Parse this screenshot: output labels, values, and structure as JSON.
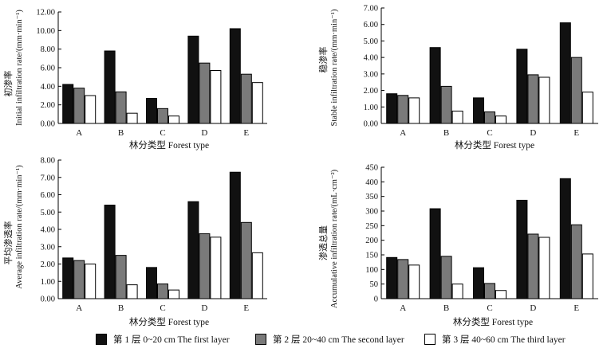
{
  "categories": [
    "A",
    "B",
    "C",
    "D",
    "E"
  ],
  "legend": [
    {
      "label": "第 1 层 0~20 cm The first layer",
      "color": "#111111"
    },
    {
      "label": "第 2 层 20~40 cm The second layer",
      "color": "#7a7a7a"
    },
    {
      "label": "第 3 层 40~60 cm The  third layer",
      "color": "#ffffff"
    }
  ],
  "chart_data": [
    {
      "type": "bar",
      "xlabel": "林分类型 Forest type",
      "ylabel_cn": "初渗率",
      "ylabel_en": "Initial infiltration rate/(mm·min⁻¹)",
      "ylim": [
        0,
        12
      ],
      "yticks": [
        "0.00",
        "2.00",
        "4.00",
        "6.00",
        "8.00",
        "10.00",
        "12.00"
      ],
      "categories": [
        "A",
        "B",
        "C",
        "D",
        "E"
      ],
      "series": [
        {
          "name": "第 1 层 0~20 cm The first layer",
          "values": [
            4.2,
            7.8,
            2.7,
            9.4,
            10.2
          ]
        },
        {
          "name": "第 2 层 20~40 cm The second layer",
          "values": [
            3.8,
            3.4,
            1.6,
            6.5,
            5.3
          ]
        },
        {
          "name": "第 3 层 40~60 cm The third layer",
          "values": [
            3.0,
            1.1,
            0.8,
            5.7,
            4.4
          ]
        }
      ]
    },
    {
      "type": "bar",
      "xlabel": "林分类型 Forest type",
      "ylabel_cn": "稳渗率",
      "ylabel_en": "Stable infiltration rate/(mm·min⁻¹)",
      "ylim": [
        0,
        7
      ],
      "yticks": [
        "0.00",
        "1.00",
        "2.00",
        "3.00",
        "4.00",
        "5.00",
        "6.00",
        "7.00"
      ],
      "categories": [
        "A",
        "B",
        "C",
        "D",
        "E"
      ],
      "series": [
        {
          "name": "第 1 层 0~20 cm The first layer",
          "values": [
            1.8,
            4.6,
            1.55,
            4.5,
            6.1
          ]
        },
        {
          "name": "第 2 层 20~40 cm The second layer",
          "values": [
            1.7,
            2.25,
            0.7,
            2.95,
            4.0
          ]
        },
        {
          "name": "第 3 层 40~60 cm The third layer",
          "values": [
            1.55,
            0.75,
            0.45,
            2.8,
            1.9
          ]
        }
      ]
    },
    {
      "type": "bar",
      "xlabel": "林分类型 Forest type",
      "ylabel_cn": "平均渗透率",
      "ylabel_en": "Average infiltration rate/(mm·min⁻¹)",
      "ylim": [
        0,
        8
      ],
      "yticks": [
        "0.00",
        "1.00",
        "2.00",
        "3.00",
        "4.00",
        "5.00",
        "6.00",
        "7.00",
        "8.00"
      ],
      "categories": [
        "A",
        "B",
        "C",
        "D",
        "E"
      ],
      "series": [
        {
          "name": "第 1 层 0~20 cm The first layer",
          "values": [
            2.35,
            5.4,
            1.8,
            5.6,
            7.3
          ]
        },
        {
          "name": "第 2 层 20~40 cm The second layer",
          "values": [
            2.2,
            2.5,
            0.85,
            3.75,
            4.4
          ]
        },
        {
          "name": "第 3 层 40~60 cm The third layer",
          "values": [
            2.0,
            0.8,
            0.5,
            3.55,
            2.65
          ]
        }
      ]
    },
    {
      "type": "bar",
      "xlabel": "林分类型 Forest type",
      "ylabel_cn": "渗透总量",
      "ylabel_en": "Accumulative infiltration rate/(mL·cm⁻²)",
      "ylim": [
        0,
        450
      ],
      "yticks": [
        "0",
        "50",
        "100",
        "150",
        "200",
        "250",
        "300",
        "350",
        "400",
        "450"
      ],
      "categories": [
        "A",
        "B",
        "C",
        "D",
        "E"
      ],
      "series": [
        {
          "name": "第 1 层 0~20 cm The first layer",
          "values": [
            141,
            308,
            106,
            337,
            411
          ]
        },
        {
          "name": "第 2 层 20~40 cm The second layer",
          "values": [
            134,
            145,
            52,
            221,
            253
          ]
        },
        {
          "name": "第 3 层 40~60 cm The third layer",
          "values": [
            115,
            50,
            28,
            210,
            153
          ]
        }
      ]
    }
  ]
}
